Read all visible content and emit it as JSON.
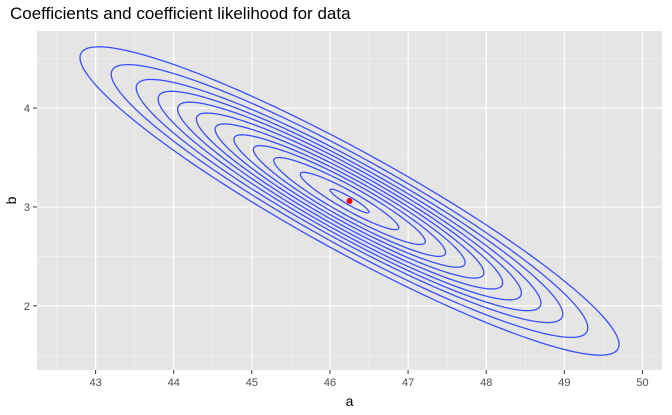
{
  "chart_data": {
    "type": "contour",
    "title": "Coefficients and coefficient likelihood for data",
    "xlabel": "a",
    "ylabel": "b",
    "xlim": [
      42.25,
      50.25
    ],
    "ylim": [
      1.35,
      4.78
    ],
    "x_ticks": [
      43,
      44,
      45,
      46,
      47,
      48,
      49,
      50
    ],
    "y_ticks": [
      2,
      3,
      4
    ],
    "grid": true,
    "background_color": "#e5e5e5",
    "contour_color": "#3a50ff",
    "point_color": "#ff0000",
    "estimate": {
      "a": 46.25,
      "b": 3.06
    },
    "contours": {
      "center": {
        "a": 46.25,
        "b": 3.06
      },
      "levels": [
        {
          "a_half_range": 3.45,
          "b_half_range": 1.56
        },
        {
          "a_half_range": 3.05,
          "b_half_range": 1.38
        },
        {
          "a_half_range": 2.73,
          "b_half_range": 1.23
        },
        {
          "a_half_range": 2.45,
          "b_half_range": 1.11
        },
        {
          "a_half_range": 2.2,
          "b_half_range": 1.0
        },
        {
          "a_half_range": 1.96,
          "b_half_range": 0.89
        },
        {
          "a_half_range": 1.72,
          "b_half_range": 0.78
        },
        {
          "a_half_range": 1.48,
          "b_half_range": 0.67
        },
        {
          "a_half_range": 1.23,
          "b_half_range": 0.56
        },
        {
          "a_half_range": 0.97,
          "b_half_range": 0.44
        },
        {
          "a_half_range": 0.63,
          "b_half_range": 0.29
        },
        {
          "a_half_range": 0.25,
          "b_half_range": 0.12
        }
      ],
      "ab_correlation": -0.93
    }
  }
}
